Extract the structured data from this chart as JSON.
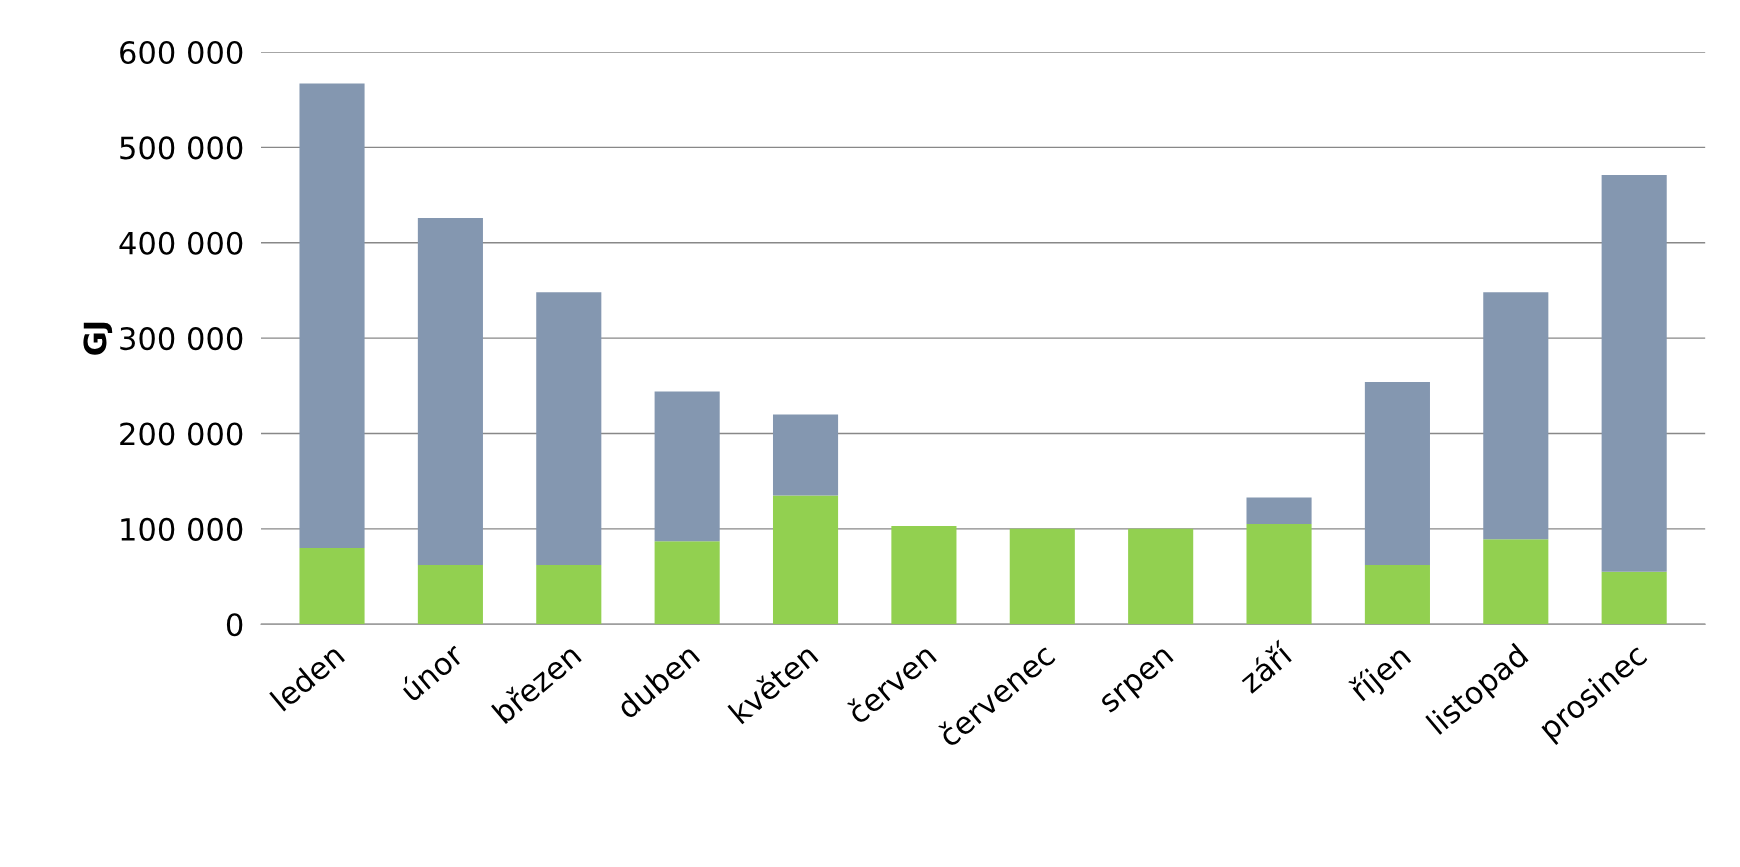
{
  "chart_data": {
    "type": "bar",
    "ylabel": "GJ",
    "stacked": true,
    "categories": [
      "leden",
      "únor",
      "březen",
      "duben",
      "květen",
      "červen",
      "červenec",
      "srpen",
      "září",
      "říjen",
      "listopad",
      "prosinec"
    ],
    "series": [
      {
        "color": "#92d050",
        "values": [
          80000,
          62000,
          62000,
          87000,
          135000,
          103000,
          100000,
          100000,
          105000,
          62000,
          89000,
          55000
        ]
      },
      {
        "color": "#8497b0",
        "values": [
          487000,
          364000,
          286000,
          157000,
          85000,
          0,
          0,
          0,
          28000,
          192000,
          259000,
          416000
        ]
      }
    ],
    "ylim": [
      0,
      600000
    ],
    "yticks": [
      {
        "value": 0,
        "label": "0"
      },
      {
        "value": 100000,
        "label": "100 000"
      },
      {
        "value": 200000,
        "label": "200 000"
      },
      {
        "value": 300000,
        "label": "300 000"
      },
      {
        "value": 400000,
        "label": "400 000"
      },
      {
        "value": 500000,
        "label": "500 000"
      },
      {
        "value": 600000,
        "label": "600 000"
      }
    ],
    "grid": "y"
  }
}
